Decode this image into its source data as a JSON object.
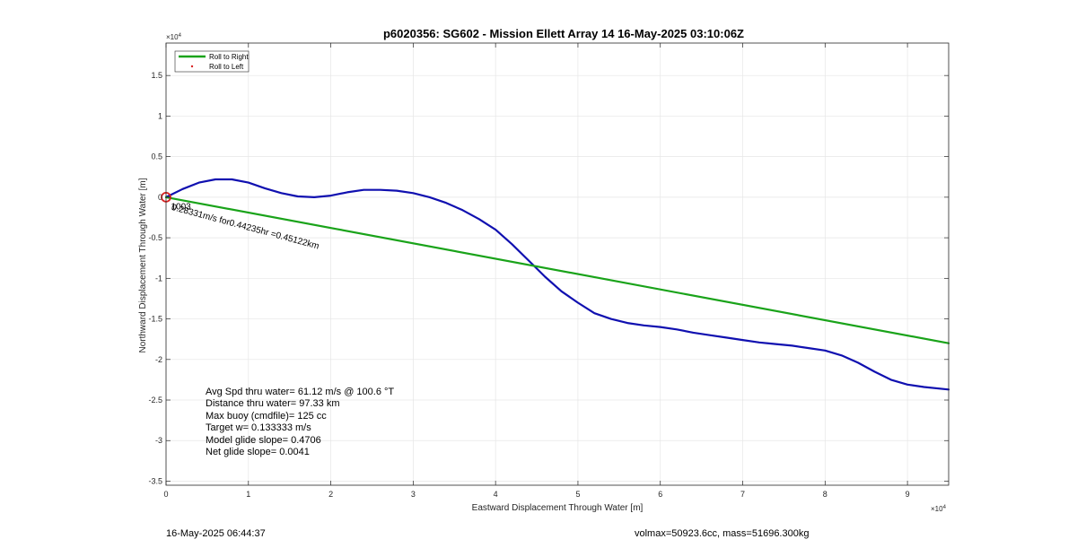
{
  "footer": {
    "timestamp": "16-May-2025 06:44:37",
    "volmax_mass": "volmax=50923.6cc, mass=51696.300kg"
  },
  "chart_data": {
    "type": "line",
    "title": "p6020356: SG602 - Mission Ellett Array 14 16-May-2025 03:10:06Z",
    "xlabel": "Eastward Displacement Through Water [m]",
    "ylabel": "Northward Displacement Through Water [m]",
    "x_exponent_label": "×10^4",
    "y_exponent_label": "×10^4",
    "xlim": [
      0,
      95000
    ],
    "ylim": [
      -35500,
      19000
    ],
    "grid": true,
    "x_ticks": [
      {
        "value": 0,
        "label": "0"
      },
      {
        "value": 10000,
        "label": "1"
      },
      {
        "value": 20000,
        "label": "2"
      },
      {
        "value": 30000,
        "label": "3"
      },
      {
        "value": 40000,
        "label": "4"
      },
      {
        "value": 50000,
        "label": "5"
      },
      {
        "value": 60000,
        "label": "6"
      },
      {
        "value": 70000,
        "label": "7"
      },
      {
        "value": 80000,
        "label": "8"
      },
      {
        "value": 90000,
        "label": "9"
      }
    ],
    "y_ticks": [
      {
        "value": 15000,
        "label": "1.5"
      },
      {
        "value": 10000,
        "label": "1"
      },
      {
        "value": 5000,
        "label": "0.5"
      },
      {
        "value": 0,
        "label": "0"
      },
      {
        "value": -5000,
        "label": "-0.5"
      },
      {
        "value": -10000,
        "label": "-1"
      },
      {
        "value": -15000,
        "label": "-1.5"
      },
      {
        "value": -20000,
        "label": "-2"
      },
      {
        "value": -25000,
        "label": "-2.5"
      },
      {
        "value": -30000,
        "label": "-3"
      },
      {
        "value": -35000,
        "label": "-3.5"
      }
    ],
    "legend": {
      "placement": "top-left",
      "entries": [
        {
          "name": "Roll to Right",
          "color": "#1aa31a",
          "marker": "line"
        },
        {
          "name": "Roll to Left",
          "color": "#d92020",
          "marker": "dot"
        }
      ]
    },
    "series": [
      {
        "role": "track",
        "color": "#1010b0",
        "x": [
          0,
          2000,
          4000,
          6000,
          8000,
          10000,
          12000,
          14000,
          16000,
          18000,
          20000,
          22000,
          24000,
          26000,
          28000,
          30000,
          32000,
          34000,
          36000,
          38000,
          40000,
          42000,
          44000,
          46000,
          48000,
          50000,
          52000,
          54000,
          56000,
          58000,
          60000,
          62000,
          64000,
          66000,
          68000,
          70000,
          72000,
          74000,
          76000,
          78000,
          80000,
          82000,
          84000,
          86000,
          88000,
          90000,
          92000,
          95000
        ],
        "y": [
          0,
          1000,
          1800,
          2200,
          2200,
          1800,
          1100,
          500,
          100,
          0,
          200,
          600,
          900,
          900,
          800,
          500,
          0,
          -700,
          -1600,
          -2700,
          -4000,
          -5800,
          -7800,
          -9800,
          -11600,
          -13000,
          -14300,
          -15000,
          -15500,
          -15800,
          -16000,
          -16300,
          -16700,
          -17000,
          -17300,
          -17600,
          -17900,
          -18100,
          -18300,
          -18600,
          -18900,
          -19500,
          -20400,
          -21500,
          -22500,
          -23100,
          -23400,
          -23700
        ]
      },
      {
        "name": "Roll to Right",
        "color": "#1aa31a",
        "x": [
          0,
          95000
        ],
        "y": [
          0,
          -18000
        ]
      }
    ],
    "start_marker": {
      "x": 0,
      "y": 0,
      "color": "#d92020"
    },
    "annotations": [
      {
        "text": "0.28331m/s for0.44235hr =0.45122km",
        "x": 600,
        "y": -1200,
        "rotate_deg": 15
      },
      {
        "text": "1003",
        "x": 600,
        "y": -1200,
        "rotate_deg": 0
      }
    ],
    "stats": [
      "Avg Spd thru water= 61.12 m/s @ 100.6 °T",
      "Distance thru water= 97.33 km",
      "Max buoy (cmdfile)= 125 cc",
      "Target w= 0.133333 m/s",
      "Model glide slope= 0.4706",
      "Net glide slope= 0.0041"
    ]
  }
}
